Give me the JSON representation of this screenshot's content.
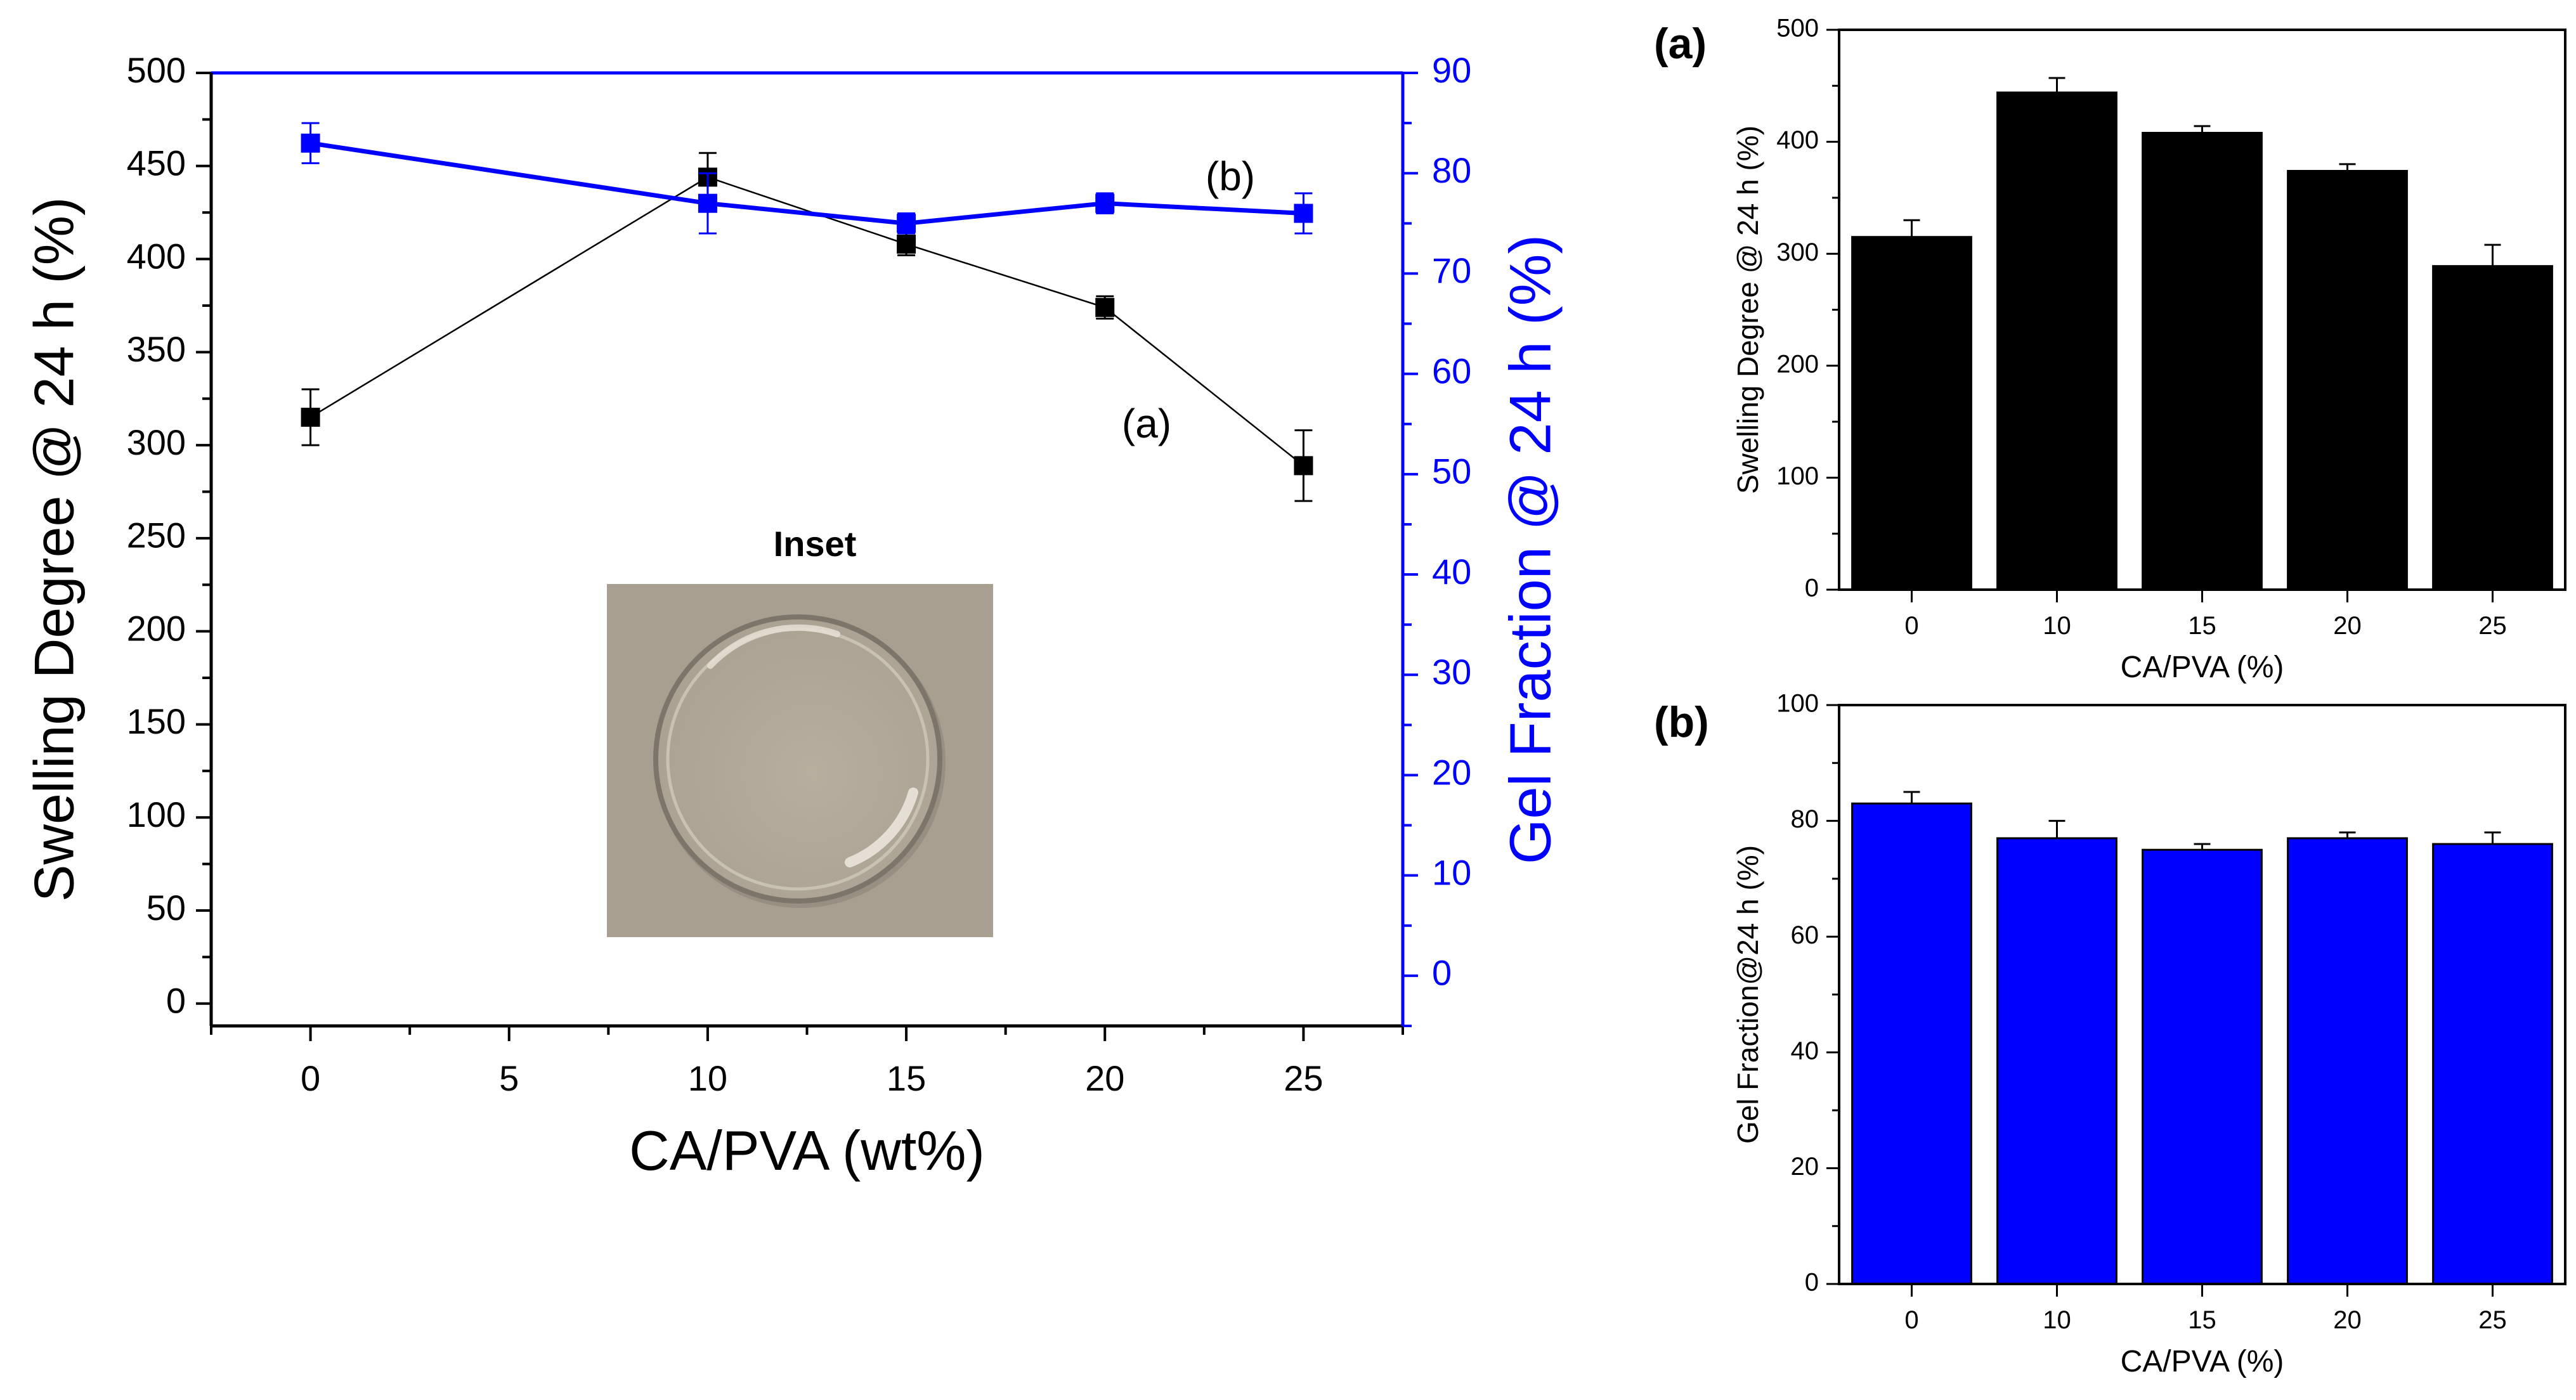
{
  "chart_data": [
    {
      "id": "main",
      "type": "line",
      "title": "",
      "xlabel": "CA/PVA (wt%)",
      "ylabel": "Swelling Degree @ 24 h (%)",
      "y2label": "Gel Fraction @ 24 h (%)",
      "xlim": [
        -2.5,
        27.5
      ],
      "ylim": [
        -12,
        500
      ],
      "y2lim": [
        -5,
        90
      ],
      "xticks": [
        0,
        5,
        10,
        15,
        20,
        25
      ],
      "yticks": [
        0,
        50,
        100,
        150,
        200,
        250,
        300,
        350,
        400,
        450,
        500
      ],
      "y2ticks": [
        0,
        10,
        20,
        30,
        40,
        50,
        60,
        70,
        80,
        90
      ],
      "series": [
        {
          "name": "(a)",
          "axis": "left",
          "color": "#000000",
          "x": [
            0,
            10,
            15,
            20,
            25
          ],
          "values": [
            315,
            444,
            408,
            374,
            289
          ],
          "errors": [
            15,
            13,
            6,
            6,
            19
          ]
        },
        {
          "name": "(b)",
          "axis": "right",
          "color": "#0000ff",
          "x": [
            0,
            10,
            15,
            20,
            25
          ],
          "values": [
            83,
            77,
            75,
            77,
            76
          ],
          "errors": [
            2,
            3,
            1,
            1,
            2
          ]
        }
      ],
      "annotations": [
        "(a)",
        "(b)"
      ],
      "inset_label": "Inset"
    },
    {
      "id": "a",
      "type": "bar",
      "panel_label": "(a)",
      "categories": [
        "0",
        "10",
        "15",
        "20",
        "25"
      ],
      "values": [
        315,
        444,
        408,
        374,
        289
      ],
      "errors": [
        15,
        13,
        6,
        6,
        19
      ],
      "color": "#000000",
      "xlabel": "CA/PVA (%)",
      "ylabel": "Swelling Degree @ 24 h (%)",
      "ylim": [
        0,
        500
      ],
      "yticks": [
        0,
        100,
        200,
        300,
        400,
        500
      ]
    },
    {
      "id": "b",
      "type": "bar",
      "panel_label": "(b)",
      "categories": [
        "0",
        "10",
        "15",
        "20",
        "25"
      ],
      "values": [
        83,
        77,
        75,
        77,
        76
      ],
      "errors": [
        2,
        3,
        1,
        1,
        2
      ],
      "color": "#0000ff",
      "xlabel": "CA/PVA (%)",
      "ylabel": "Gel Fraction@24 h (%)",
      "ylim": [
        0,
        100
      ],
      "yticks": [
        0,
        20,
        40,
        60,
        80,
        100
      ]
    }
  ]
}
